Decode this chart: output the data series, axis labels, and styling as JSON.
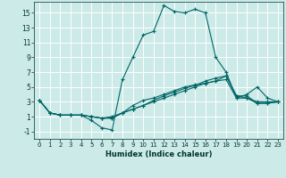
{
  "xlabel": "Humidex (Indice chaleur)",
  "ylabel": "",
  "background_color": "#cceae7",
  "grid_color": "#ffffff",
  "line_color": "#006666",
  "xlim": [
    -0.5,
    23.5
  ],
  "ylim": [
    -2,
    16.5
  ],
  "xticks": [
    0,
    1,
    2,
    3,
    4,
    5,
    6,
    7,
    8,
    9,
    10,
    11,
    12,
    13,
    14,
    15,
    16,
    17,
    18,
    19,
    20,
    21,
    22,
    23
  ],
  "yticks": [
    -1,
    1,
    3,
    5,
    7,
    9,
    11,
    13,
    15
  ],
  "series": [
    [
      3.2,
      1.5,
      1.2,
      1.2,
      1.2,
      0.5,
      -0.5,
      -0.8,
      6.0,
      9.0,
      12.0,
      12.5,
      16.0,
      15.2,
      15.0,
      15.5,
      15.0,
      9.0,
      7.0,
      3.5,
      4.0,
      5.0,
      3.5,
      3.0
    ],
    [
      3.2,
      1.5,
      1.2,
      1.2,
      1.2,
      1.0,
      0.8,
      0.8,
      1.5,
      2.0,
      2.5,
      3.0,
      3.5,
      4.0,
      4.5,
      5.0,
      5.5,
      5.8,
      6.0,
      3.5,
      3.5,
      3.0,
      3.0,
      3.0
    ],
    [
      3.2,
      1.5,
      1.2,
      1.2,
      1.2,
      1.0,
      0.8,
      1.0,
      1.5,
      2.5,
      3.2,
      3.5,
      4.0,
      4.5,
      5.0,
      5.3,
      5.5,
      5.8,
      6.5,
      3.8,
      3.5,
      2.8,
      2.8,
      3.0
    ],
    [
      3.2,
      1.5,
      1.2,
      1.2,
      1.2,
      1.0,
      0.8,
      0.8,
      1.5,
      2.0,
      2.5,
      3.2,
      3.8,
      4.3,
      4.8,
      5.2,
      5.8,
      6.2,
      6.5,
      3.8,
      3.8,
      2.8,
      2.8,
      3.0
    ]
  ]
}
